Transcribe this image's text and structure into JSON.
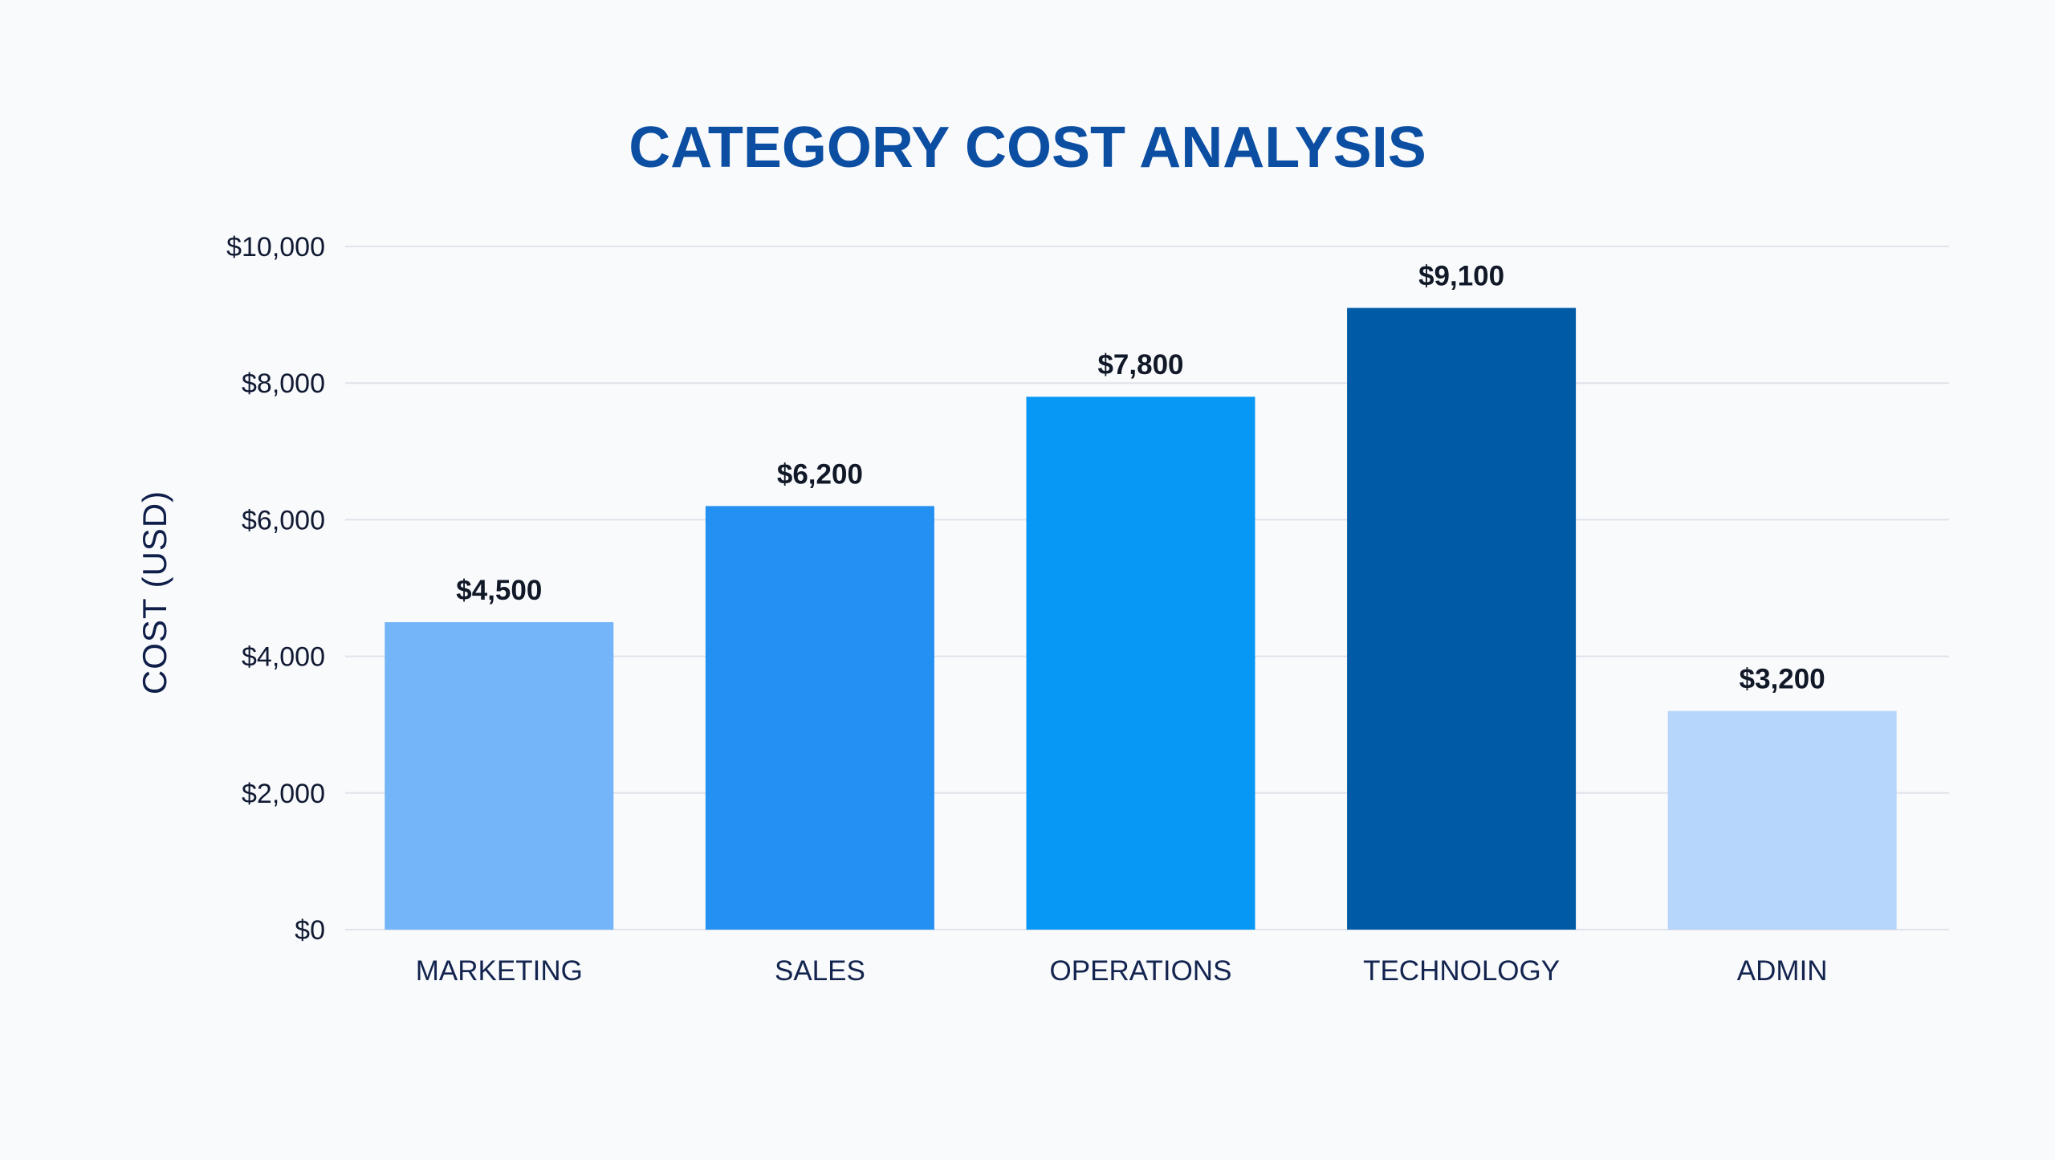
{
  "chart_data": {
    "type": "bar",
    "title": "CATEGORY COST ANALYSIS",
    "xlabel": "",
    "ylabel": "COST (USD)",
    "categories": [
      "MARKETING",
      "SALES",
      "OPERATIONS",
      "TECHNOLOGY",
      "ADMIN"
    ],
    "values": [
      4500,
      6200,
      7800,
      9100,
      3200
    ],
    "value_labels": [
      "$4,500",
      "$6,200",
      "$7,800",
      "$9,100",
      "$3,200"
    ],
    "ylim": [
      0,
      10000
    ],
    "yticks": [
      0,
      2000,
      4000,
      6000,
      8000,
      10000
    ],
    "ytick_labels": [
      "$0",
      "$2,000",
      "$4,000",
      "$6,000",
      "$8,000",
      "$10,000"
    ],
    "grid": true,
    "legend": "none",
    "colors": {
      "title": "#0b4ea2",
      "bars": [
        "#74b4f8",
        "#2390f2",
        "#0698f4",
        "#005aa6",
        "#b6d6fb"
      ]
    }
  }
}
